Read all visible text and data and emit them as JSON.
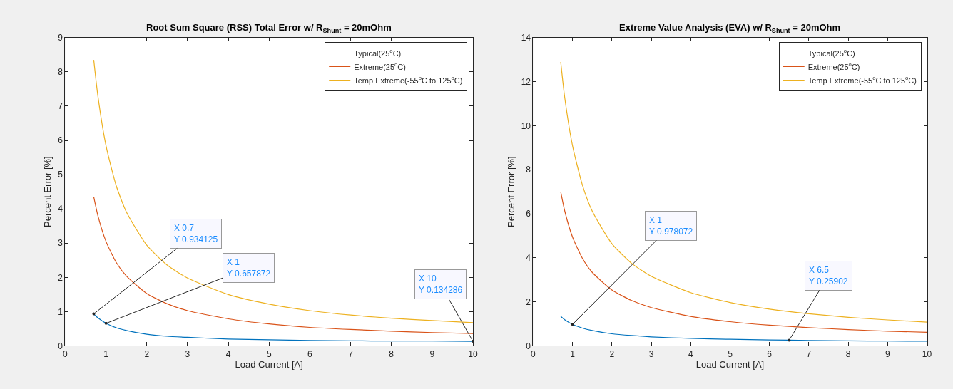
{
  "chart_data": [
    {
      "type": "line",
      "title": "Root Sum Square (RSS) Total Error w/ R$_{Shunt}$ = 20mOhm",
      "xlabel": "Load Current [A]",
      "ylabel": "Percent Error [%]",
      "x": [
        0.7,
        0.8,
        1,
        1.25,
        1.5,
        2,
        2.5,
        3,
        4,
        5,
        6,
        7,
        8,
        9,
        10
      ],
      "series": [
        {
          "name": "Typical(25$^{o}$C)",
          "color": "#0072bd",
          "values": [
            0.93,
            0.82,
            0.66,
            0.53,
            0.45,
            0.34,
            0.28,
            0.25,
            0.2,
            0.18,
            0.16,
            0.15,
            0.14,
            0.14,
            0.13
          ]
        },
        {
          "name": "Extreme(25$^{o}$C)",
          "color": "#d95319",
          "values": [
            4.35,
            3.81,
            3.05,
            2.44,
            2.04,
            1.53,
            1.23,
            1.03,
            0.79,
            0.64,
            0.54,
            0.48,
            0.43,
            0.39,
            0.36
          ]
        },
        {
          "name": "Temp Extreme(-55$^{o}$C to 125$^{o}$C)",
          "color": "#edb120",
          "values": [
            8.35,
            7.31,
            5.85,
            4.68,
            3.91,
            2.94,
            2.36,
            1.98,
            1.5,
            1.22,
            1.03,
            0.9,
            0.81,
            0.74,
            0.68
          ]
        }
      ],
      "xlim": [
        0,
        10
      ],
      "xticks": [
        0,
        1,
        2,
        3,
        4,
        5,
        6,
        7,
        8,
        9,
        10
      ],
      "ylim": [
        0,
        9
      ],
      "yticks": [
        0,
        1,
        2,
        3,
        4,
        5,
        6,
        7,
        8,
        9
      ],
      "legend": "top right",
      "annotations": [
        {
          "text": "X 0.7\nY 0.934125",
          "x": 0.7,
          "y": 0.934125
        },
        {
          "text": "X 1\nY 0.657872",
          "x": 1,
          "y": 0.657872
        },
        {
          "text": "X 10\nY 0.134286",
          "x": 10,
          "y": 0.134286
        }
      ]
    },
    {
      "type": "line",
      "title": "Extreme Value Analysis (EVA) w/ R$_{Shunt}$ = 20mOhm",
      "xlabel": "Load Current [A]",
      "ylabel": "Percent Error [%]",
      "x": [
        0.7,
        0.8,
        1,
        1.25,
        1.5,
        2,
        2.5,
        3,
        4,
        5,
        6,
        7,
        8,
        9,
        10
      ],
      "series": [
        {
          "name": "Typical(25$^{o}$C)",
          "color": "#0072bd",
          "values": [
            1.34,
            1.19,
            0.98,
            0.81,
            0.7,
            0.55,
            0.47,
            0.41,
            0.34,
            0.3,
            0.27,
            0.25,
            0.23,
            0.22,
            0.21
          ]
        },
        {
          "name": "Extreme(25$^{o}$C)",
          "color": "#d95319",
          "values": [
            7.0,
            6.14,
            4.94,
            3.98,
            3.34,
            2.54,
            2.06,
            1.74,
            1.34,
            1.1,
            0.94,
            0.83,
            0.74,
            0.67,
            0.62
          ]
        },
        {
          "name": "Temp Extreme(-55$^{o}$C to 125$^{o}$C)",
          "color": "#edb120",
          "values": [
            12.9,
            11.3,
            9.09,
            7.31,
            6.12,
            4.64,
            3.75,
            3.16,
            2.42,
            1.97,
            1.67,
            1.46,
            1.3,
            1.18,
            1.08
          ]
        }
      ],
      "xlim": [
        0,
        10
      ],
      "xticks": [
        0,
        1,
        2,
        3,
        4,
        5,
        6,
        7,
        8,
        9,
        10
      ],
      "ylim": [
        0,
        14
      ],
      "yticks": [
        0,
        2,
        4,
        6,
        8,
        10,
        12,
        14
      ],
      "legend": "top right",
      "annotations": [
        {
          "text": "X 1\nY 0.978072",
          "x": 1,
          "y": 0.978072
        },
        {
          "text": "X 6.5\nY 0.25902",
          "x": 6.5,
          "y": 0.25902
        }
      ]
    }
  ]
}
